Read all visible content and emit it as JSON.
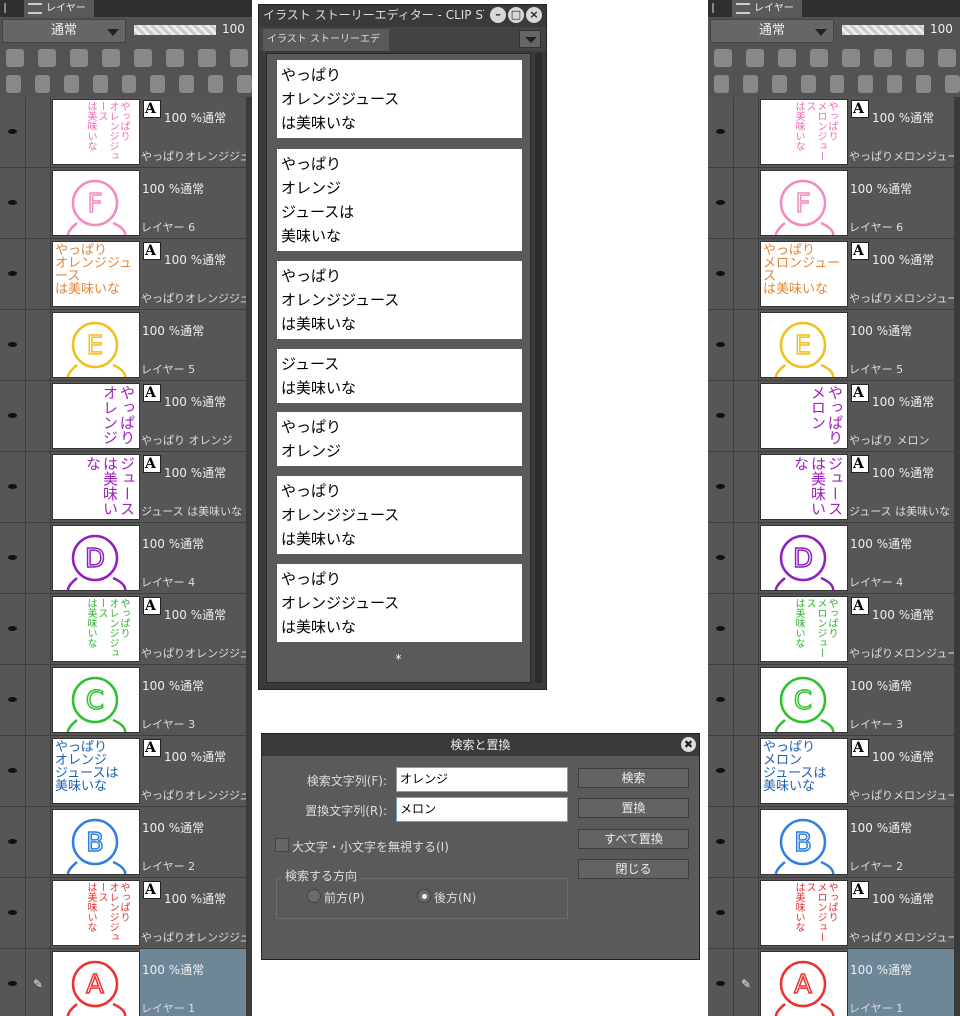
{
  "layer_panel_left": {
    "tab_label": "レイヤー",
    "blend_mode": "通常",
    "opacity": "100",
    "layers": [
      {
        "kind": "text",
        "vertical": true,
        "color": "#f06ab8",
        "thumb": "やっぱり\nオレンジジュース\nは美味いな",
        "status": "100 %通常",
        "name": "やっぱりオレンジジュースは美"
      },
      {
        "kind": "raster",
        "letter": "F",
        "color": "#f48ac0",
        "status": "100 %通常",
        "name": "レイヤー 6"
      },
      {
        "kind": "text",
        "vertical": false,
        "color": "#e0883a",
        "thumb": "やっぱり\nオレンジジュース\nは美味いな",
        "status": "100 %通常",
        "name": "やっぱりオレンジジュースは美"
      },
      {
        "kind": "raster",
        "letter": "E",
        "color": "#f0c020",
        "status": "100 %通常",
        "name": "レイヤー 5"
      },
      {
        "kind": "text",
        "vertical": true,
        "big": true,
        "color": "#a020c0",
        "thumb": "やっぱり\nオレンジ",
        "status": "100 %通常",
        "name": "やっぱり オレンジ"
      },
      {
        "kind": "text",
        "vertical": true,
        "big": true,
        "color": "#a020c0",
        "thumb": "ジュース\nは美味いな",
        "status": "100 %通常",
        "name": "ジュース は美味いな"
      },
      {
        "kind": "raster",
        "letter": "D",
        "color": "#9020c0",
        "status": "100 %通常",
        "name": "レイヤー 4"
      },
      {
        "kind": "text",
        "vertical": true,
        "color": "#30b030",
        "thumb": "やっぱり\nオレンジジュース\nは美味いな",
        "status": "100 %通常",
        "name": "やっぱりオレンジジュースは美"
      },
      {
        "kind": "raster",
        "letter": "C",
        "color": "#30c030",
        "status": "100 %通常",
        "name": "レイヤー 3"
      },
      {
        "kind": "text",
        "vertical": false,
        "color": "#2060b0",
        "thumb": "やっぱり\nオレンジ\nジュースは\n美味いな",
        "status": "100 %通常",
        "name": "やっぱりオレンジジュースは美"
      },
      {
        "kind": "raster",
        "letter": "B",
        "color": "#3080e0",
        "status": "100 %通常",
        "name": "レイヤー 2"
      },
      {
        "kind": "text",
        "vertical": true,
        "color": "#e03030",
        "thumb": "やっぱり\nオレンジジュース\nは美味いな",
        "status": "100 %通常",
        "name": "やっぱりオレンジジュースは美"
      },
      {
        "kind": "raster",
        "letter": "A",
        "color": "#f03030",
        "status": "100 %通常",
        "name": "レイヤー 1",
        "selected": true
      }
    ]
  },
  "layer_panel_right": {
    "tab_label": "レイヤー",
    "blend_mode": "通常",
    "opacity": "100",
    "layers": [
      {
        "kind": "text",
        "vertical": true,
        "color": "#f06ab8",
        "thumb": "やっぱり\nメロンジュース\nは美味いな",
        "status": "100 %通常",
        "name": "やっぱりメロンジュースは美味"
      },
      {
        "kind": "raster",
        "letter": "F",
        "color": "#f48ac0",
        "status": "100 %通常",
        "name": "レイヤー 6"
      },
      {
        "kind": "text",
        "vertical": false,
        "color": "#e0883a",
        "thumb": "やっぱり\nメロンジュース\nは美味いな",
        "status": "100 %通常",
        "name": "やっぱりメロンジュースは美味"
      },
      {
        "kind": "raster",
        "letter": "E",
        "color": "#f0c020",
        "status": "100 %通常",
        "name": "レイヤー 5"
      },
      {
        "kind": "text",
        "vertical": true,
        "big": true,
        "color": "#a020c0",
        "thumb": "やっぱり\nメロン",
        "status": "100 %通常",
        "name": "やっぱり メロン"
      },
      {
        "kind": "text",
        "vertical": true,
        "big": true,
        "color": "#a020c0",
        "thumb": "ジュース\nは美味いな",
        "status": "100 %通常",
        "name": "ジュース は美味いな"
      },
      {
        "kind": "raster",
        "letter": "D",
        "color": "#9020c0",
        "status": "100 %通常",
        "name": "レイヤー 4"
      },
      {
        "kind": "text",
        "vertical": true,
        "color": "#30b030",
        "thumb": "やっぱり\nメロンジュース\nは美味いな",
        "status": "100 %通常",
        "name": "やっぱりメロンジュースは美味"
      },
      {
        "kind": "raster",
        "letter": "C",
        "color": "#30c030",
        "status": "100 %通常",
        "name": "レイヤー 3"
      },
      {
        "kind": "text",
        "vertical": false,
        "color": "#2060b0",
        "thumb": "やっぱり\nメロン\nジュースは\n美味いな",
        "status": "100 %通常",
        "name": "やっぱりメロンジュースは美味"
      },
      {
        "kind": "raster",
        "letter": "B",
        "color": "#3080e0",
        "status": "100 %通常",
        "name": "レイヤー 2"
      },
      {
        "kind": "text",
        "vertical": true,
        "color": "#e03030",
        "thumb": "やっぱり\nメロンジュース\nは美味いな",
        "status": "100 %通常",
        "name": "やっぱりメロンジュースは美味"
      },
      {
        "kind": "raster",
        "letter": "A",
        "color": "#f03030",
        "status": "100 %通常",
        "name": "レイヤー 1",
        "selected": true
      }
    ]
  },
  "story_editor": {
    "window_title": "イラスト ストーリーエディター - CLIP STUDIO PAINT",
    "tab_label": "イラスト ストーリーエディター",
    "blocks": [
      "やっぱり\nオレンジジュース\nは美味いな",
      "やっぱり\nオレンジ\nジュースは\n美味いな",
      "やっぱり\nオレンジジュース\nは美味いな",
      "ジュース\nは美味いな",
      "やっぱり\nオレンジ",
      "やっぱり\nオレンジジュース\nは美味いな",
      "やっぱり\nオレンジジュース\nは美味いな"
    ],
    "end_marker": "*"
  },
  "find_replace": {
    "title": "検索と置換",
    "find_label": "検索文字列(F):",
    "find_value": "オレンジ",
    "replace_label": "置換文字列(R):",
    "replace_value": "メロン",
    "ignore_case_label": "大文字・小文字を無視する(I)",
    "ignore_case_checked": false,
    "direction_label": "検索する方向",
    "forward_label": "前方(P)",
    "backward_label": "後方(N)",
    "direction_selected": "backward",
    "buttons": {
      "find": "検索",
      "replace": "置換",
      "replace_all": "すべて置換",
      "close": "閉じる"
    }
  }
}
